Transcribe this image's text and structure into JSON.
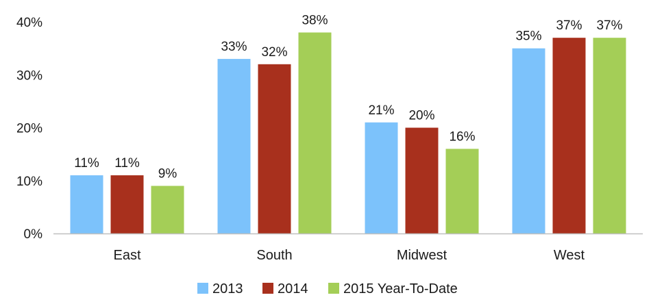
{
  "chart_data": {
    "type": "bar",
    "categories": [
      "East",
      "South",
      "Midwest",
      "West"
    ],
    "series": [
      {
        "name": "2013",
        "values": [
          11,
          33,
          21,
          35
        ],
        "color": "#7cc2fb"
      },
      {
        "name": "2014",
        "values": [
          11,
          32,
          20,
          37
        ],
        "color": "#a8301d"
      },
      {
        "name": "2015 Year-To-Date",
        "values": [
          9,
          38,
          16,
          37
        ],
        "color": "#a4ce57"
      }
    ],
    "value_suffix": "%",
    "ylim": [
      0,
      40
    ],
    "yticks": [
      "0%",
      "10%",
      "20%",
      "30%",
      "40%"
    ],
    "ytick_values": [
      0,
      10,
      20,
      30,
      40
    ],
    "title": "",
    "xlabel": "",
    "ylabel": "",
    "grid": false,
    "legend_position": "bottom"
  }
}
